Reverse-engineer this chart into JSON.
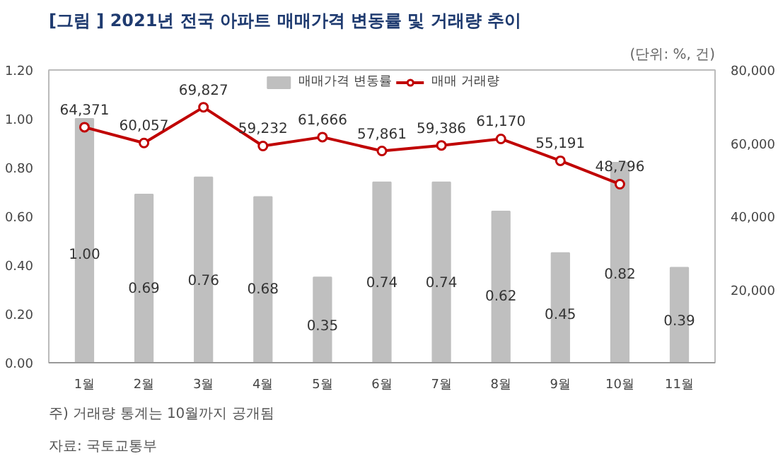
{
  "chart_data": {
    "type": "bar",
    "title": "[그림 ] 2021년 전국 아파트 매매가격 변동률 및 거래량 추이",
    "subtitle": "(단위: %, 건)",
    "categories": [
      "1월",
      "2월",
      "3월",
      "4월",
      "5월",
      "6월",
      "7월",
      "8월",
      "9월",
      "10월",
      "11월"
    ],
    "series": [
      {
        "name": "매매가격 변동률",
        "color": "#bfbfbf",
        "values": [
          1.0,
          0.69,
          0.76,
          0.68,
          0.35,
          0.74,
          0.74,
          0.62,
          0.45,
          0.82,
          0.39
        ],
        "value_labels": [
          "1.00",
          "0.69",
          "0.76",
          "0.68",
          "0.35",
          "0.74",
          "0.74",
          "0.62",
          "0.45",
          "0.82",
          "0.39"
        ]
      },
      {
        "name": "매매 거래량",
        "type": "line",
        "axis": "y2",
        "color": "#c00000",
        "marker": "circle",
        "values": [
          64371,
          60057,
          69827,
          59232,
          61666,
          57861,
          59386,
          61170,
          55191,
          48796,
          null
        ],
        "value_labels": [
          "64,371",
          "60,057",
          "69,827",
          "59,232",
          "61,666",
          "57,861",
          "59,386",
          "61,170",
          "55,191",
          "48,796",
          null
        ]
      }
    ],
    "ylim": [
      0,
      1.2
    ],
    "yticks": [
      {
        "value": 0,
        "label": "0.00"
      },
      {
        "value": 0.2,
        "label": "0.20"
      },
      {
        "value": 0.4,
        "label": "0.40"
      },
      {
        "value": 0.6,
        "label": "0.60"
      },
      {
        "value": 0.8,
        "label": "0.80"
      },
      {
        "value": 1.0,
        "label": "1.00"
      },
      {
        "value": 1.2,
        "label": "1.20"
      }
    ],
    "y2lim": [
      0,
      80000
    ],
    "y2ticks": [
      {
        "value": 20000,
        "label": "20,000"
      },
      {
        "value": 40000,
        "label": "40,000"
      },
      {
        "value": 60000,
        "label": "60,000"
      },
      {
        "value": 80000,
        "label": "80,000"
      }
    ],
    "legend": "top",
    "grid": false,
    "annotations": [
      "주) 거래량 통계는 10월까지 공개됨",
      "자료: 국토교통부"
    ]
  }
}
